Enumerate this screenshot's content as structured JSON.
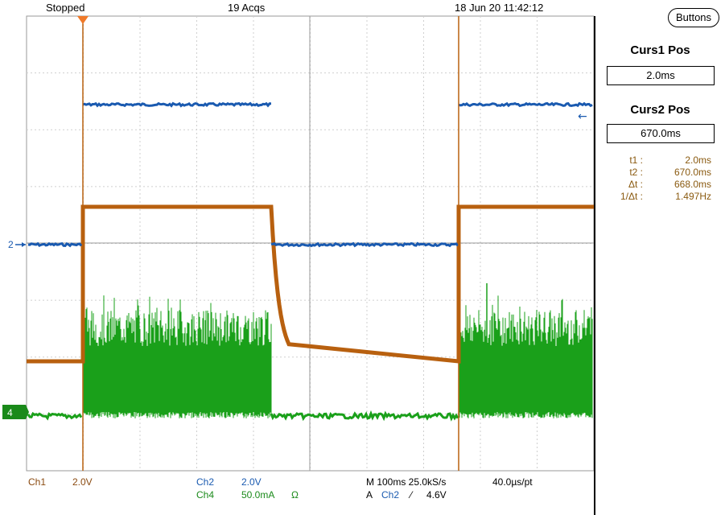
{
  "header": {
    "status": "Stopped",
    "acquisitions": "19 Acqs",
    "datetime": "18 Jun 20 11:42:12",
    "buttons_label": "Buttons"
  },
  "side_panel": {
    "curs1_title": "Curs1 Pos",
    "curs1_value": "2.0ms",
    "curs2_title": "Curs2 Pos",
    "curs2_value": "670.0ms",
    "measurements": [
      {
        "label": "t1 :",
        "value": "2.0ms"
      },
      {
        "label": "t2 :",
        "value": "670.0ms"
      },
      {
        "label": "Δt :",
        "value": "668.0ms"
      },
      {
        "label": "1/Δt :",
        "value": "1.497Hz"
      }
    ]
  },
  "markers": {
    "ch2": "2",
    "ch4": "4"
  },
  "footer": {
    "ch1_label": "Ch1",
    "ch1_scale": "2.0V",
    "ch2_label": "Ch2",
    "ch2_scale": "2.0V",
    "ch4_label": "Ch4",
    "ch4_scale": "50.0mA",
    "ch4_unit": "Ω",
    "timebase": "M 100ms 25.0kS/s",
    "sample_interval": "40.0µs/pt",
    "trigger_mode": "A",
    "trigger_source": "Ch2",
    "trigger_slope": "⁄",
    "trigger_level": "4.6V"
  },
  "colors": {
    "ch1": "#b8600f",
    "ch2": "#1a5ab0",
    "ch4": "#1aa01a",
    "grid": "#9a9a9a"
  }
}
